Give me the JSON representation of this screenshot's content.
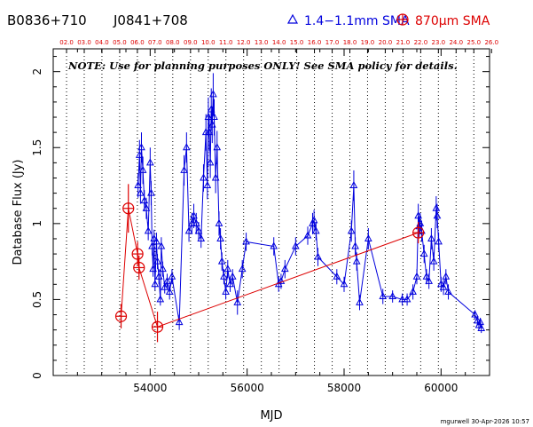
{
  "header": {
    "source_left": "B0836+710",
    "source_right": "J0841+708",
    "legend_blue": "1.4−1.1mm SMA",
    "legend_red_prefix": "870",
    "legend_red_mu": "μ",
    "legend_red_suffix": "m SMA"
  },
  "note": "NOTE: Use for planning purposes ONLY!  See SMA policy for details.",
  "footer": "mgurwell 30-Apr-2026 10:57",
  "colors": {
    "blue": "#0000dd",
    "red": "#dd0000",
    "axis": "#000000"
  },
  "chart_data": {
    "type": "scatter",
    "xlabel": "MJD",
    "ylabel": "Database Flux (Jy)",
    "xlim": [
      52000,
      61000
    ],
    "ylim": [
      0,
      2.15
    ],
    "x_ticks": [
      54000,
      56000,
      58000,
      60000
    ],
    "y_ticks": [
      0,
      0.5,
      1,
      1.5,
      2
    ],
    "y_tick_labels": [
      "0",
      "0.5",
      "1",
      "1.5",
      "2"
    ],
    "top_axis_labels": [
      "02.0",
      "03.0",
      "04.0",
      "05.0",
      "06.0",
      "07.0",
      "08.0",
      "09.0",
      "10.0",
      "11.0",
      "12.0",
      "13.0",
      "14.0",
      "15.0",
      "16.0",
      "17.0",
      "18.0",
      "19.0",
      "20.0",
      "21.0",
      "22.0",
      "23.0",
      "24.0",
      "25.0",
      "26.0"
    ],
    "year_start_mjd": [
      52275,
      52640,
      53005,
      53371,
      53736,
      54101,
      54466,
      54832,
      55197,
      55562,
      55927,
      56293,
      56658,
      57023,
      57388,
      57754,
      58119,
      58484,
      58849,
      59215,
      59580,
      59945,
      60310,
      60676,
      61041
    ],
    "grid": "vertical dotted lines at year boundaries",
    "series": [
      {
        "name": "1.4−1.1mm SMA",
        "marker": "triangle",
        "points": [
          [
            53750,
            1.25,
            0.08
          ],
          [
            53780,
            1.45,
            0.1
          ],
          [
            53800,
            1.2,
            0.07
          ],
          [
            53820,
            1.5,
            0.1
          ],
          [
            53850,
            1.35,
            0.09
          ],
          [
            53880,
            1.15,
            0.07
          ],
          [
            53920,
            1.1,
            0.07
          ],
          [
            53960,
            0.95,
            0.06
          ],
          [
            54000,
            1.4,
            0.1
          ],
          [
            54020,
            1.2,
            0.08
          ],
          [
            54040,
            0.85,
            0.06
          ],
          [
            54060,
            0.7,
            0.05
          ],
          [
            54080,
            0.9,
            0.06
          ],
          [
            54100,
            0.6,
            0.04
          ],
          [
            54130,
            0.88,
            0.06
          ],
          [
            54150,
            0.75,
            0.05
          ],
          [
            54180,
            0.65,
            0.05
          ],
          [
            54210,
            0.5,
            0.04
          ],
          [
            54230,
            0.85,
            0.06
          ],
          [
            54260,
            0.7,
            0.05
          ],
          [
            54300,
            0.58,
            0.04
          ],
          [
            54350,
            0.62,
            0.05
          ],
          [
            54400,
            0.55,
            0.05
          ],
          [
            54450,
            0.65,
            0.05
          ],
          [
            54600,
            0.35,
            0.05
          ],
          [
            54700,
            1.35,
            0.1
          ],
          [
            54750,
            1.5,
            0.1
          ],
          [
            54800,
            0.95,
            0.07
          ],
          [
            54860,
            1.0,
            0.07
          ],
          [
            54900,
            1.05,
            0.08
          ],
          [
            54950,
            1.0,
            0.07
          ],
          [
            55000,
            0.95,
            0.06
          ],
          [
            55050,
            0.9,
            0.06
          ],
          [
            55100,
            1.3,
            0.09
          ],
          [
            55150,
            1.6,
            0.12
          ],
          [
            55180,
            1.25,
            0.09
          ],
          [
            55200,
            1.7,
            0.13
          ],
          [
            55220,
            1.6,
            0.12
          ],
          [
            55240,
            1.4,
            0.1
          ],
          [
            55260,
            1.75,
            0.14
          ],
          [
            55280,
            1.65,
            0.12
          ],
          [
            55300,
            1.85,
            0.14
          ],
          [
            55320,
            1.7,
            0.12
          ],
          [
            55350,
            1.3,
            0.1
          ],
          [
            55380,
            1.5,
            0.11
          ],
          [
            55420,
            1.0,
            0.08
          ],
          [
            55450,
            0.9,
            0.07
          ],
          [
            55480,
            0.75,
            0.06
          ],
          [
            55520,
            0.65,
            0.05
          ],
          [
            55560,
            0.55,
            0.05
          ],
          [
            55600,
            0.7,
            0.06
          ],
          [
            55650,
            0.6,
            0.05
          ],
          [
            55700,
            0.65,
            0.05
          ],
          [
            55800,
            0.48,
            0.08
          ],
          [
            55900,
            0.7,
            0.06
          ],
          [
            55980,
            0.88,
            0.06
          ],
          [
            56550,
            0.85,
            0.06
          ],
          [
            56650,
            0.6,
            0.05
          ],
          [
            56700,
            0.62,
            0.05
          ],
          [
            56780,
            0.7,
            0.06
          ],
          [
            57000,
            0.85,
            0.06
          ],
          [
            57250,
            0.92,
            0.06
          ],
          [
            57350,
            1.0,
            0.07
          ],
          [
            57380,
            1.02,
            0.07
          ],
          [
            57420,
            0.95,
            0.06
          ],
          [
            57460,
            0.78,
            0.06
          ],
          [
            57850,
            0.65,
            0.05
          ],
          [
            58000,
            0.6,
            0.05
          ],
          [
            58150,
            0.95,
            0.07
          ],
          [
            58200,
            1.25,
            0.1
          ],
          [
            58230,
            0.85,
            0.06
          ],
          [
            58260,
            0.75,
            0.06
          ],
          [
            58320,
            0.48,
            0.05
          ],
          [
            58500,
            0.9,
            0.07
          ],
          [
            58800,
            0.52,
            0.05
          ],
          [
            59000,
            0.52,
            0.04
          ],
          [
            59200,
            0.5,
            0.04
          ],
          [
            59300,
            0.5,
            0.04
          ],
          [
            59420,
            0.55,
            0.05
          ],
          [
            59500,
            0.65,
            0.05
          ],
          [
            59530,
            1.05,
            0.08
          ],
          [
            59550,
            0.98,
            0.07
          ],
          [
            59570,
            1.0,
            0.07
          ],
          [
            59600,
            0.95,
            0.07
          ],
          [
            59650,
            0.8,
            0.06
          ],
          [
            59700,
            0.65,
            0.05
          ],
          [
            59750,
            0.62,
            0.05
          ],
          [
            59800,
            0.9,
            0.07
          ],
          [
            59850,
            0.75,
            0.06
          ],
          [
            59900,
            1.1,
            0.08
          ],
          [
            59920,
            1.05,
            0.08
          ],
          [
            59950,
            0.88,
            0.06
          ],
          [
            60000,
            0.6,
            0.05
          ],
          [
            60050,
            0.58,
            0.05
          ],
          [
            60100,
            0.65,
            0.05
          ],
          [
            60150,
            0.55,
            0.05
          ],
          [
            60700,
            0.4,
            0.03
          ],
          [
            60750,
            0.36,
            0.03
          ],
          [
            60780,
            0.33,
            0.03
          ],
          [
            60810,
            0.35,
            0.03
          ],
          [
            60830,
            0.31,
            0.03
          ]
        ]
      },
      {
        "name": "870μm SMA",
        "marker": "circle-cross",
        "points": [
          [
            53400,
            0.39,
            0.08
          ],
          [
            53550,
            1.1,
            0.16
          ],
          [
            53740,
            0.8,
            0.08
          ],
          [
            53770,
            0.71,
            0.08
          ],
          [
            54150,
            0.32,
            0.1
          ],
          [
            59530,
            0.94,
            0.07
          ]
        ]
      }
    ]
  }
}
